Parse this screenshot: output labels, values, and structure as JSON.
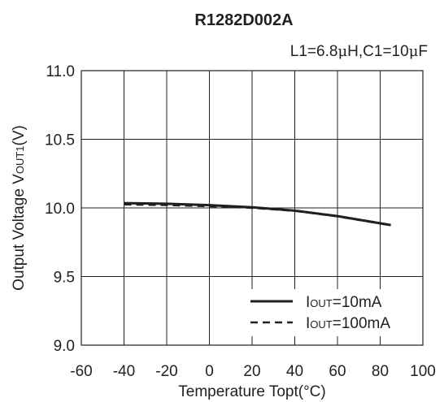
{
  "chart_data": {
    "type": "line",
    "title": "R1282D002A",
    "subtitle_parts": [
      "L1=6.8",
      "μ",
      "H,C1=10",
      "μ",
      "F"
    ],
    "xlabel": "Temperature Topt(°C)",
    "ylabel_main": "Output Voltage V",
    "ylabel_sub": "OUT1",
    "ylabel_tail": "(V)",
    "xlim": [
      -60,
      100
    ],
    "ylim": [
      9.0,
      11.0
    ],
    "xticks": [
      -60,
      -40,
      -20,
      0,
      20,
      40,
      60,
      80,
      100
    ],
    "yticks": [
      11.0,
      10.5,
      10.0,
      9.5,
      9.0
    ],
    "ytick_labels": [
      "11.0",
      "10.5",
      "10.0",
      "9.5",
      "9.0"
    ],
    "grid": true,
    "legend_position": "bottom-right",
    "series": [
      {
        "name_main": "I",
        "name_sub": "OUT",
        "name_tail": "=10mA",
        "style": "solid",
        "color": "#231f20",
        "x": [
          -40,
          -20,
          0,
          20,
          40,
          60,
          85
        ],
        "y": [
          10.035,
          10.03,
          10.02,
          10.005,
          9.98,
          9.94,
          9.875
        ]
      },
      {
        "name_main": "I",
        "name_sub": "OUT",
        "name_tail": "=100mA",
        "style": "dashed",
        "color": "#231f20",
        "x": [
          -40,
          -20,
          0,
          20,
          40,
          60,
          85
        ],
        "y": [
          10.025,
          10.02,
          10.012,
          10.0,
          9.978,
          9.938,
          9.873
        ]
      }
    ]
  }
}
